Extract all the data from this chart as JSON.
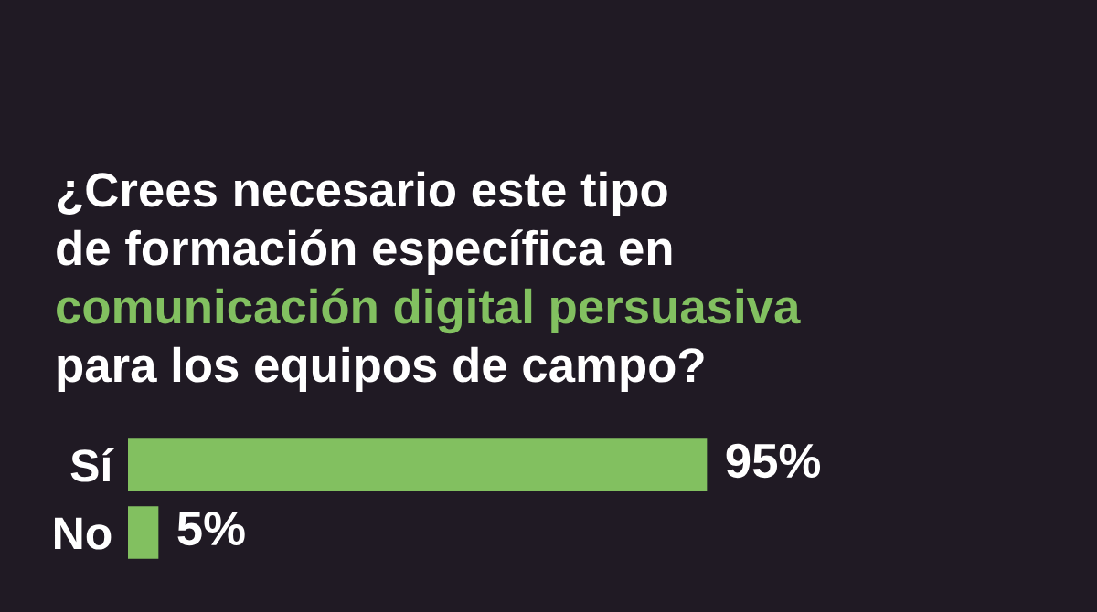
{
  "chart_data": {
    "type": "bar",
    "orientation": "horizontal",
    "title": "¿Crees necesario este tipo\nde formación específica en\ncomunicación digital persuasiva\npara los equipos de campo?",
    "categories": [
      "Sí",
      "No"
    ],
    "values": [
      95,
      5
    ],
    "value_labels": [
      "95%",
      "5%"
    ],
    "color": "#82c060",
    "tick_labels": "y"
  }
}
